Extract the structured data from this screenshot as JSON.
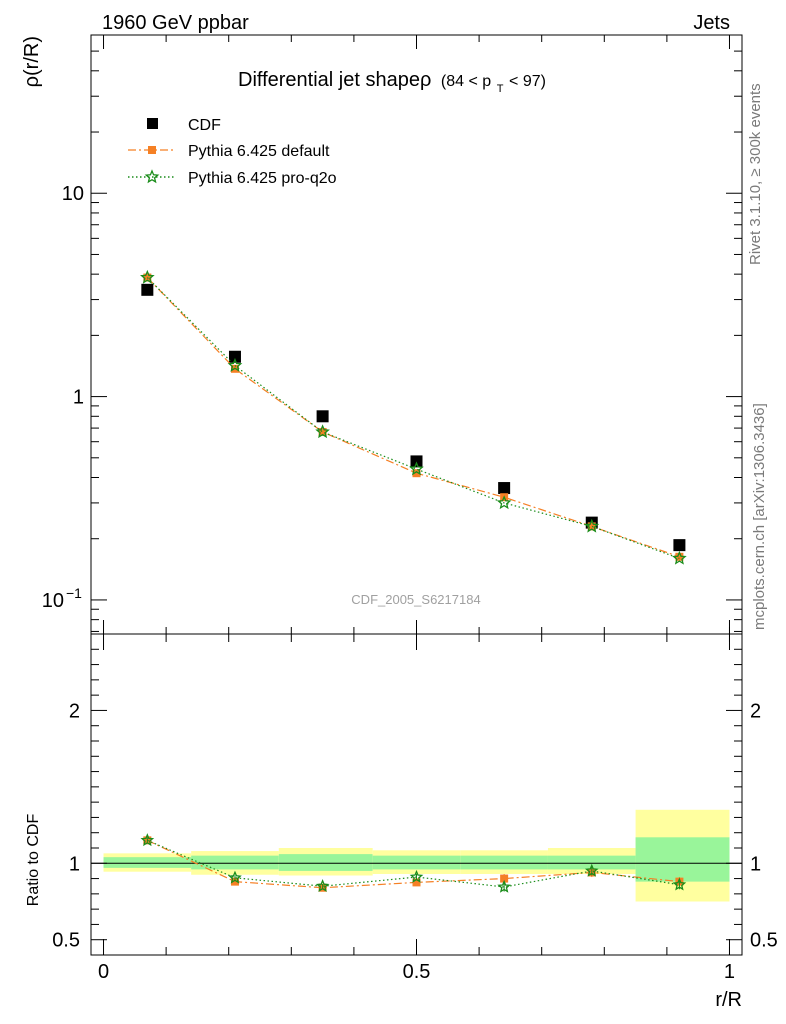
{
  "header": {
    "left": "1960 GeV ppbar",
    "right": "Jets"
  },
  "side": {
    "rivet": "Rivet 3.1.10, ≥ 300k events",
    "mcplots": "mcplots.cern.ch [arXiv:1306.3436]"
  },
  "chart_data": [
    {
      "type": "scatter",
      "title": "Differential jet shapeρ",
      "title_sub": "(84 < p",
      "title_sub_t": "T",
      "title_sub_end": " < 97)",
      "ylabel": "ρ(r/R)",
      "watermark": "CDF_2005_S6217184",
      "yscale": "log",
      "ylim": [
        0.068,
        60
      ],
      "xlim": [
        -0.02,
        1.02
      ],
      "y_ticks": [
        {
          "value": 10,
          "label": "10",
          "exp": ""
        },
        {
          "value": 1,
          "label": "1",
          "exp": ""
        },
        {
          "value": 0.1,
          "label": "10",
          "exp": "−1"
        }
      ],
      "x": [
        0.07,
        0.21,
        0.35,
        0.5,
        0.64,
        0.78,
        0.92
      ],
      "series": [
        {
          "name": "CDF",
          "color": "#000000",
          "marker": "square",
          "values": [
            3.35,
            1.57,
            0.8,
            0.48,
            0.355,
            0.24,
            0.186
          ]
        },
        {
          "name": "Pythia 6.425 default",
          "color": "#f58025",
          "marker": "square-small",
          "line": "dashdot",
          "values": [
            3.85,
            1.37,
            0.67,
            0.42,
            0.32,
            0.23,
            0.163
          ]
        },
        {
          "name": "Pythia 6.425 pro-q2o",
          "color": "#1a8c1a",
          "marker": "star",
          "line": "dotted",
          "values": [
            3.85,
            1.42,
            0.67,
            0.44,
            0.3,
            0.23,
            0.16
          ]
        }
      ]
    },
    {
      "type": "line",
      "ylabel": "Ratio to CDF",
      "xlabel": "r/R",
      "ylim": [
        0.4,
        2.5
      ],
      "xlim": [
        -0.02,
        1.02
      ],
      "y_ticks": [
        {
          "value": 0.5,
          "label": "0.5"
        },
        {
          "value": 1,
          "label": "1"
        },
        {
          "value": 2,
          "label": "2"
        }
      ],
      "x_ticks": [
        {
          "value": 0,
          "label": "0"
        },
        {
          "value": 0.5,
          "label": "0.5"
        },
        {
          "value": 1,
          "label": "1"
        }
      ],
      "bins": [
        {
          "lo": 0.0,
          "hi": 0.14,
          "green": [
            0.97,
            1.04
          ],
          "yellow": [
            0.945,
            1.065
          ]
        },
        {
          "lo": 0.14,
          "hi": 0.28,
          "green": [
            0.96,
            1.05
          ],
          "yellow": [
            0.925,
            1.08
          ]
        },
        {
          "lo": 0.28,
          "hi": 0.43,
          "green": [
            0.95,
            1.06
          ],
          "yellow": [
            0.92,
            1.1
          ]
        },
        {
          "lo": 0.43,
          "hi": 0.57,
          "green": [
            0.96,
            1.05
          ],
          "yellow": [
            0.93,
            1.085
          ]
        },
        {
          "lo": 0.57,
          "hi": 0.71,
          "green": [
            0.96,
            1.05
          ],
          "yellow": [
            0.93,
            1.085
          ]
        },
        {
          "lo": 0.71,
          "hi": 0.85,
          "green": [
            0.96,
            1.05
          ],
          "yellow": [
            0.93,
            1.1
          ]
        },
        {
          "lo": 0.85,
          "hi": 1.0,
          "green": [
            0.88,
            1.17
          ],
          "yellow": [
            0.75,
            1.35
          ]
        }
      ],
      "x": [
        0.07,
        0.21,
        0.35,
        0.5,
        0.64,
        0.78,
        0.92
      ],
      "series": [
        {
          "name": "Pythia 6.425 default",
          "color": "#f58025",
          "marker": "square-small",
          "line": "dashdot",
          "values": [
            1.15,
            0.88,
            0.84,
            0.875,
            0.9,
            0.94,
            0.88
          ],
          "errors": [
            0.02,
            0.015,
            0.015,
            0.02,
            0.03,
            0.03,
            0.03
          ]
        },
        {
          "name": "Pythia 6.425 pro-q2o",
          "color": "#1a8c1a",
          "marker": "star",
          "line": "dotted",
          "values": [
            1.15,
            0.905,
            0.85,
            0.91,
            0.845,
            0.95,
            0.86
          ],
          "errors": [
            0.02,
            0.015,
            0.015,
            0.02,
            0.03,
            0.03,
            0.03
          ]
        }
      ]
    }
  ]
}
